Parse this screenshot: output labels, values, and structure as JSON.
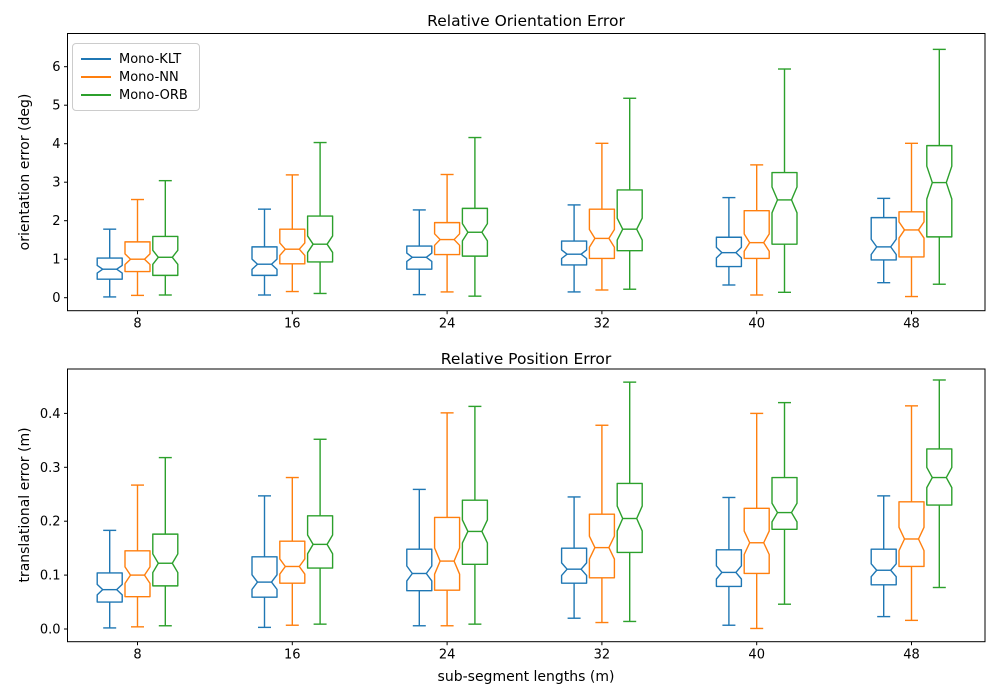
{
  "chart_data": [
    {
      "type": "box",
      "title": "Relative Orientation Error",
      "ylabel": "orientation error (deg)",
      "xlabel": "",
      "categories": [
        "8",
        "16",
        "24",
        "32",
        "40",
        "48"
      ],
      "ytick_values": [
        0,
        1,
        2,
        3,
        4,
        5,
        6
      ],
      "ytick_labels": [
        "0",
        "1",
        "2",
        "3",
        "4",
        "5",
        "6"
      ],
      "ylim": [
        -0.35,
        6.86
      ],
      "grid": false,
      "notched": true,
      "legend": {
        "position": "upper-left",
        "entries": [
          "Mono-KLT",
          "Mono-NN",
          "Mono-ORB"
        ]
      },
      "series": [
        {
          "name": "Mono-KLT",
          "color": "#1f77b4",
          "boxes": [
            {
              "lo": 0.02,
              "q1": 0.48,
              "med": 0.74,
              "q3": 1.03,
              "hi": 1.78
            },
            {
              "lo": 0.07,
              "q1": 0.58,
              "med": 0.87,
              "q3": 1.32,
              "hi": 2.3
            },
            {
              "lo": 0.08,
              "q1": 0.74,
              "med": 1.05,
              "q3": 1.34,
              "hi": 2.28
            },
            {
              "lo": 0.15,
              "q1": 0.85,
              "med": 1.13,
              "q3": 1.47,
              "hi": 2.41
            },
            {
              "lo": 0.33,
              "q1": 0.81,
              "med": 1.17,
              "q3": 1.57,
              "hi": 2.6
            },
            {
              "lo": 0.39,
              "q1": 0.98,
              "med": 1.32,
              "q3": 2.08,
              "hi": 2.58
            }
          ]
        },
        {
          "name": "Mono-NN",
          "color": "#ff7f0e",
          "boxes": [
            {
              "lo": 0.06,
              "q1": 0.68,
              "med": 1.0,
              "q3": 1.45,
              "hi": 2.55
            },
            {
              "lo": 0.16,
              "q1": 0.88,
              "med": 1.26,
              "q3": 1.78,
              "hi": 3.19
            },
            {
              "lo": 0.15,
              "q1": 1.12,
              "med": 1.51,
              "q3": 1.95,
              "hi": 3.2
            },
            {
              "lo": 0.2,
              "q1": 1.02,
              "med": 1.54,
              "q3": 2.3,
              "hi": 4.01
            },
            {
              "lo": 0.07,
              "q1": 1.02,
              "med": 1.43,
              "q3": 2.26,
              "hi": 3.45
            },
            {
              "lo": 0.03,
              "q1": 1.06,
              "med": 1.76,
              "q3": 2.23,
              "hi": 4.01
            }
          ]
        },
        {
          "name": "Mono-ORB",
          "color": "#2ca02c",
          "boxes": [
            {
              "lo": 0.07,
              "q1": 0.58,
              "med": 1.05,
              "q3": 1.59,
              "hi": 3.04
            },
            {
              "lo": 0.11,
              "q1": 0.93,
              "med": 1.39,
              "q3": 2.12,
              "hi": 4.03
            },
            {
              "lo": 0.04,
              "q1": 1.08,
              "med": 1.7,
              "q3": 2.32,
              "hi": 4.16
            },
            {
              "lo": 0.22,
              "q1": 1.22,
              "med": 1.78,
              "q3": 2.8,
              "hi": 5.18
            },
            {
              "lo": 0.14,
              "q1": 1.39,
              "med": 2.54,
              "q3": 3.25,
              "hi": 5.94
            },
            {
              "lo": 0.35,
              "q1": 1.58,
              "med": 2.99,
              "q3": 3.95,
              "hi": 6.45
            }
          ]
        }
      ]
    },
    {
      "type": "box",
      "title": "Relative Position Error",
      "ylabel": "translational error (m)",
      "xlabel": "sub-segment lengths (m)",
      "categories": [
        "8",
        "16",
        "24",
        "32",
        "40",
        "48"
      ],
      "ytick_values": [
        0.0,
        0.1,
        0.2,
        0.3,
        0.4
      ],
      "ytick_labels": [
        "0.0",
        "0.1",
        "0.2",
        "0.3",
        "0.4"
      ],
      "ylim": [
        -0.024,
        0.482
      ],
      "grid": false,
      "notched": true,
      "legend": null,
      "series": [
        {
          "name": "Mono-KLT",
          "color": "#1f77b4",
          "boxes": [
            {
              "lo": 0.002,
              "q1": 0.05,
              "med": 0.073,
              "q3": 0.104,
              "hi": 0.183
            },
            {
              "lo": 0.003,
              "q1": 0.059,
              "med": 0.087,
              "q3": 0.134,
              "hi": 0.247
            },
            {
              "lo": 0.006,
              "q1": 0.071,
              "med": 0.103,
              "q3": 0.148,
              "hi": 0.259
            },
            {
              "lo": 0.02,
              "q1": 0.085,
              "med": 0.111,
              "q3": 0.15,
              "hi": 0.245
            },
            {
              "lo": 0.007,
              "q1": 0.079,
              "med": 0.105,
              "q3": 0.147,
              "hi": 0.244
            },
            {
              "lo": 0.023,
              "q1": 0.082,
              "med": 0.109,
              "q3": 0.148,
              "hi": 0.247
            }
          ]
        },
        {
          "name": "Mono-NN",
          "color": "#ff7f0e",
          "boxes": [
            {
              "lo": 0.004,
              "q1": 0.06,
              "med": 0.1,
              "q3": 0.145,
              "hi": 0.267
            },
            {
              "lo": 0.007,
              "q1": 0.085,
              "med": 0.116,
              "q3": 0.163,
              "hi": 0.281
            },
            {
              "lo": 0.006,
              "q1": 0.072,
              "med": 0.126,
              "q3": 0.207,
              "hi": 0.401
            },
            {
              "lo": 0.012,
              "q1": 0.095,
              "med": 0.151,
              "q3": 0.213,
              "hi": 0.378
            },
            {
              "lo": 0.001,
              "q1": 0.103,
              "med": 0.16,
              "q3": 0.224,
              "hi": 0.4
            },
            {
              "lo": 0.016,
              "q1": 0.116,
              "med": 0.167,
              "q3": 0.236,
              "hi": 0.414
            }
          ]
        },
        {
          "name": "Mono-ORB",
          "color": "#2ca02c",
          "boxes": [
            {
              "lo": 0.006,
              "q1": 0.08,
              "med": 0.122,
              "q3": 0.176,
              "hi": 0.318
            },
            {
              "lo": 0.009,
              "q1": 0.113,
              "med": 0.157,
              "q3": 0.21,
              "hi": 0.352
            },
            {
              "lo": 0.009,
              "q1": 0.12,
              "med": 0.181,
              "q3": 0.239,
              "hi": 0.413
            },
            {
              "lo": 0.014,
              "q1": 0.142,
              "med": 0.205,
              "q3": 0.27,
              "hi": 0.458
            },
            {
              "lo": 0.046,
              "q1": 0.185,
              "med": 0.216,
              "q3": 0.281,
              "hi": 0.42
            },
            {
              "lo": 0.077,
              "q1": 0.23,
              "med": 0.281,
              "q3": 0.334,
              "hi": 0.462
            }
          ]
        }
      ]
    }
  ]
}
